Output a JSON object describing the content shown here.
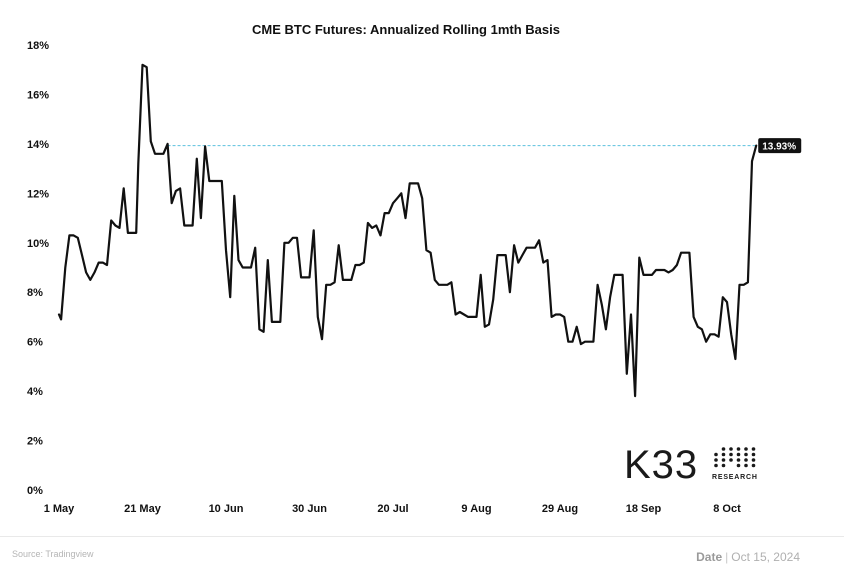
{
  "chart_data": {
    "type": "line",
    "title": "CME BTC Futures: Annualized Rolling 1mth Basis",
    "ylim": [
      0,
      18
    ],
    "y_ticks": [
      "0%",
      "2%",
      "4%",
      "6%",
      "8%",
      "10%",
      "12%",
      "14%",
      "16%",
      "18%"
    ],
    "x_ticks": [
      "1 May",
      "21 May",
      "10 Jun",
      "30 Jun",
      "20 Jul",
      "9 Aug",
      "29 Aug",
      "18 Sep",
      "8 Oct"
    ],
    "x_range_days": [
      0,
      170
    ],
    "reference_line": {
      "value": 13.93,
      "label": "13.93%",
      "color": "#5bc0de"
    },
    "series": [
      {
        "x": [
          0,
          0.5,
          1.5,
          2.5,
          3.5,
          4.5,
          5.5,
          6.5,
          7.5,
          8.5,
          9.5,
          10.5,
          11.5,
          12.5,
          13.5,
          14.5,
          15.5,
          16.5,
          17.5,
          18.5,
          19,
          20,
          21,
          22,
          23,
          24,
          25,
          26,
          27,
          28,
          29,
          30,
          31,
          32,
          33,
          34,
          35,
          36,
          37,
          38,
          39,
          40,
          41,
          42,
          43,
          44,
          45,
          46,
          47,
          48,
          49,
          50,
          51,
          52,
          53,
          54,
          55,
          56,
          57,
          58,
          59,
          60,
          61,
          62,
          63,
          64,
          65,
          66,
          67,
          68,
          69,
          70,
          71,
          72,
          73,
          74,
          75,
          76,
          77,
          78,
          79,
          80,
          81,
          82,
          83,
          84,
          85,
          86,
          87,
          88,
          89,
          90,
          91,
          92,
          93,
          94,
          95,
          96,
          97,
          98,
          99,
          100,
          101,
          102,
          103,
          104,
          105,
          106,
          107,
          108,
          109,
          110,
          111,
          112,
          113,
          114,
          115,
          116,
          117,
          118,
          119,
          120,
          121,
          122,
          123,
          124,
          125,
          126,
          127,
          128,
          129,
          130,
          131,
          132,
          133,
          134,
          135,
          136,
          137,
          138,
          139,
          140,
          141,
          142,
          143,
          144,
          145,
          146,
          147,
          148,
          149,
          150,
          151,
          152,
          153,
          154,
          155,
          156,
          157,
          158,
          159,
          160,
          161,
          162,
          163,
          164,
          165,
          166,
          167
        ],
        "values": [
          7.1,
          6.9,
          9.0,
          10.3,
          10.3,
          10.2,
          9.5,
          8.8,
          8.5,
          8.8,
          9.2,
          9.2,
          9.1,
          10.9,
          10.7,
          10.6,
          12.2,
          10.4,
          10.4,
          10.4,
          13.2,
          17.2,
          17.1,
          14.1,
          13.6,
          13.6,
          13.6,
          14.0,
          11.6,
          12.1,
          12.2,
          10.7,
          10.7,
          10.7,
          13.4,
          11.0,
          13.9,
          12.5,
          12.5,
          12.5,
          12.5,
          9.7,
          7.8,
          11.9,
          9.3,
          9.0,
          9.0,
          9.0,
          9.8,
          6.5,
          6.4,
          9.3,
          6.8,
          6.8,
          6.8,
          10.0,
          10.0,
          10.2,
          10.2,
          8.6,
          8.6,
          8.6,
          10.5,
          7.0,
          6.1,
          8.3,
          8.3,
          8.4,
          9.9,
          8.5,
          8.5,
          8.5,
          9.1,
          9.1,
          9.2,
          10.8,
          10.6,
          10.7,
          10.3,
          11.2,
          11.2,
          11.6,
          11.8,
          12.0,
          11.0,
          12.4,
          12.4,
          12.4,
          11.8,
          9.7,
          9.6,
          8.5,
          8.3,
          8.3,
          8.3,
          8.4,
          7.1,
          7.2,
          7.1,
          7.0,
          7.0,
          7.0,
          8.7,
          6.6,
          6.7,
          7.7,
          9.5,
          9.5,
          9.5,
          8.0,
          9.9,
          9.2,
          9.5,
          9.8,
          9.8,
          9.8,
          10.1,
          9.2,
          9.3,
          7.0,
          7.1,
          7.1,
          7.0,
          6.0,
          6.0,
          6.6,
          5.9,
          6.0,
          6.0,
          6.0,
          8.3,
          7.5,
          6.5,
          7.8,
          8.7,
          8.7,
          8.7,
          4.7,
          7.1,
          3.8,
          9.4,
          8.7,
          8.7,
          8.7,
          8.9,
          8.9,
          8.9,
          8.8,
          8.9,
          9.1,
          9.6,
          9.6,
          9.6,
          7.0,
          6.6,
          6.5,
          6.0,
          6.3,
          6.3,
          6.2,
          7.8,
          7.6,
          6.3,
          5.3,
          8.3,
          8.3,
          8.4,
          13.3,
          13.93
        ]
      }
    ]
  },
  "brand": {
    "name": "K33",
    "sub": "RESEARCH"
  },
  "footer": {
    "source": "Source: Tradingview",
    "date_label": "Date",
    "separator": "|",
    "date_value": "Oct 15, 2024"
  }
}
